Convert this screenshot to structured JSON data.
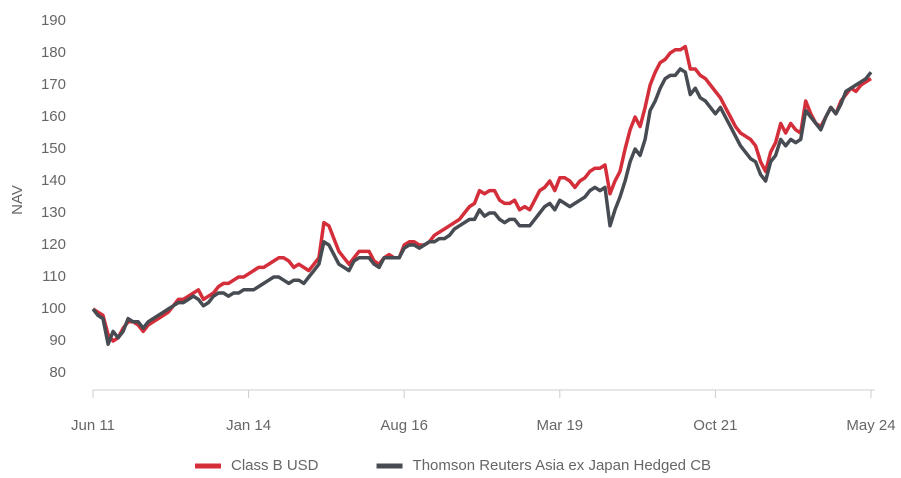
{
  "chart_data": {
    "type": "line",
    "ylabel": "NAV",
    "categories": [
      "Jun 11",
      null,
      null,
      null,
      null,
      null,
      null,
      null,
      null,
      null,
      null,
      null,
      null,
      null,
      null,
      null,
      null,
      null,
      null,
      null,
      null,
      null,
      null,
      null,
      null,
      null,
      null,
      null,
      null,
      null,
      null,
      "Jan 14",
      null,
      null,
      null,
      null,
      null,
      null,
      null,
      null,
      null,
      null,
      null,
      null,
      null,
      null,
      null,
      null,
      null,
      null,
      null,
      null,
      null,
      null,
      null,
      null,
      null,
      null,
      null,
      null,
      null,
      null,
      "Aug 16",
      null,
      null,
      null,
      null,
      null,
      null,
      null,
      null,
      null,
      null,
      null,
      null,
      null,
      null,
      null,
      null,
      null,
      null,
      null,
      null,
      null,
      null,
      null,
      null,
      null,
      null,
      null,
      null,
      null,
      null,
      "Mar 19",
      null,
      null,
      null,
      null,
      null,
      null,
      null,
      null,
      null,
      null,
      null,
      null,
      null,
      null,
      null,
      null,
      null,
      null,
      null,
      null,
      null,
      null,
      null,
      null,
      null,
      null,
      null,
      null,
      null,
      null,
      "Oct 21",
      null,
      null,
      null,
      null,
      null,
      null,
      null,
      null,
      null,
      null,
      null,
      null,
      null,
      null,
      null,
      null,
      null,
      null,
      null,
      null,
      null,
      null,
      null,
      null,
      null,
      null,
      null,
      null,
      null,
      null,
      "May 24"
    ],
    "series": [
      {
        "name": "Class B USD",
        "color": "#d42e3a",
        "values": [
          100,
          99,
          98,
          92,
          90,
          91,
          94,
          96,
          96,
          95,
          93,
          95,
          96,
          97,
          98,
          99,
          101,
          103,
          103,
          104,
          105,
          106,
          103,
          104,
          105,
          107,
          108,
          108,
          109,
          110,
          110,
          111,
          112,
          113,
          113,
          114,
          115,
          116,
          116,
          115,
          113,
          114,
          113,
          112,
          114,
          116,
          127,
          126,
          122,
          118,
          116,
          114,
          116,
          118,
          118,
          118,
          115,
          114,
          116,
          117,
          116,
          116,
          120,
          121,
          121,
          120,
          120,
          121,
          123,
          124,
          125,
          126,
          127,
          128,
          130,
          132,
          133,
          137,
          136,
          137,
          137,
          134,
          133,
          133,
          134,
          131,
          132,
          131,
          134,
          137,
          138,
          140,
          137,
          141,
          141,
          140,
          138,
          140,
          141,
          143,
          144,
          144,
          145,
          136,
          140,
          143,
          150,
          156,
          160,
          157,
          163,
          170,
          174,
          177,
          178,
          180,
          181,
          181,
          182,
          175,
          175,
          173,
          172,
          170,
          168,
          166,
          163,
          160,
          157,
          155,
          154,
          153,
          151,
          146,
          143,
          149,
          152,
          158,
          155,
          158,
          156,
          155,
          165,
          161,
          158,
          157,
          160,
          163,
          161,
          165,
          167,
          169,
          168,
          170,
          171,
          172
        ]
      },
      {
        "name": "Thomson Reuters Asia ex Japan Hedged CB",
        "color": "#474b52",
        "values": [
          100,
          98,
          97,
          89,
          93,
          91,
          93,
          97,
          96,
          96,
          94,
          96,
          97,
          98,
          99,
          100,
          101,
          102,
          102,
          103,
          104,
          103,
          101,
          102,
          104,
          105,
          105,
          104,
          105,
          105,
          106,
          106,
          106,
          107,
          108,
          109,
          110,
          110,
          109,
          108,
          109,
          109,
          108,
          110,
          112,
          114,
          121,
          120,
          117,
          114,
          113,
          112,
          115,
          116,
          116,
          116,
          114,
          113,
          116,
          116,
          116,
          116,
          119,
          120,
          120,
          119,
          120,
          121,
          121,
          122,
          122,
          123,
          125,
          126,
          127,
          128,
          128,
          131,
          129,
          130,
          130,
          128,
          127,
          128,
          128,
          126,
          126,
          126,
          128,
          130,
          132,
          133,
          131,
          134,
          133,
          132,
          133,
          134,
          135,
          137,
          138,
          137,
          138,
          126,
          131,
          135,
          140,
          146,
          150,
          148,
          153,
          162,
          165,
          169,
          172,
          173,
          173,
          175,
          174,
          167,
          169,
          166,
          165,
          163,
          161,
          163,
          160,
          157,
          154,
          151,
          149,
          147,
          146,
          142,
          140,
          146,
          148,
          153,
          151,
          153,
          152,
          153,
          162,
          160,
          158,
          156,
          160,
          163,
          161,
          164,
          168,
          169,
          170,
          171,
          172,
          174
        ]
      }
    ],
    "ylim": [
      75,
      190
    ],
    "yticks": [
      80,
      90,
      100,
      110,
      120,
      130,
      140,
      150,
      160,
      170,
      180,
      190
    ],
    "grid": false,
    "legend": "bottom"
  }
}
